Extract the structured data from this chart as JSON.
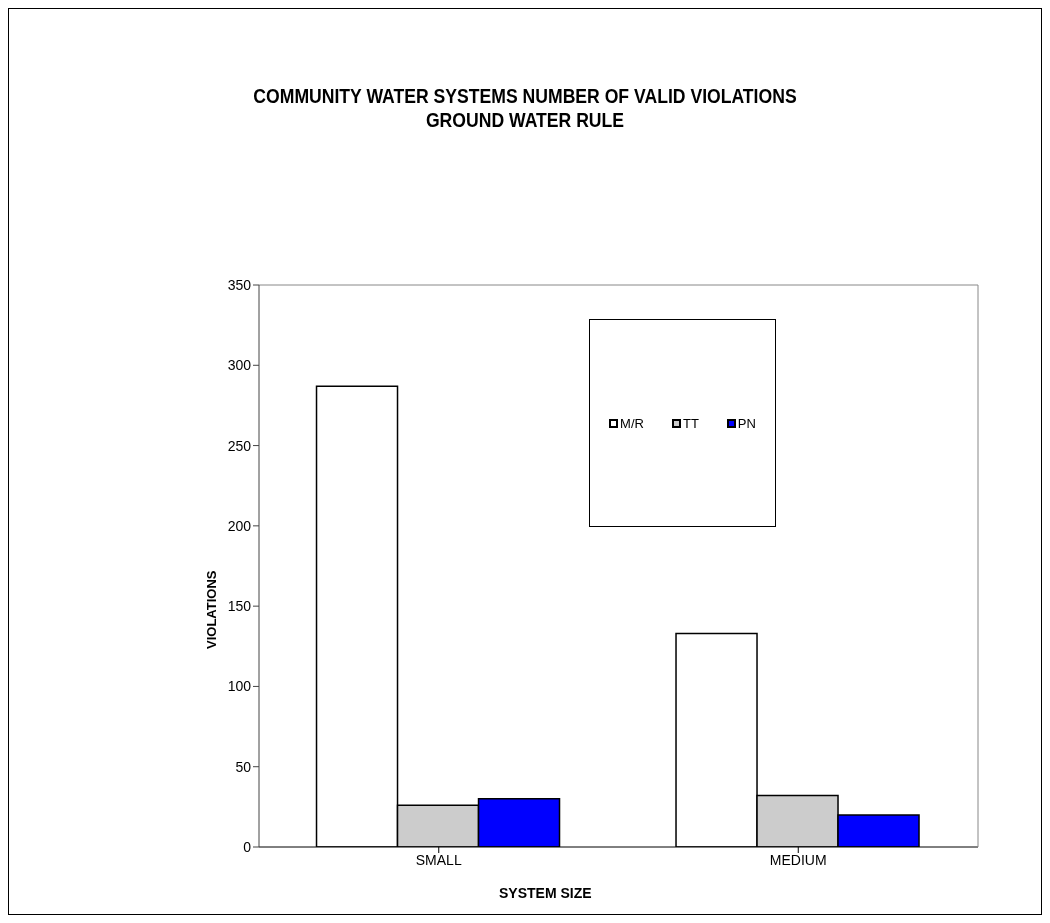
{
  "chart_data": {
    "type": "bar",
    "title": "COMMUNITY WATER SYSTEMS NUMBER OF VALID VIOLATIONS\nGROUND WATER RULE",
    "xlabel": "SYSTEM SIZE",
    "ylabel": "VIOLATIONS",
    "categories": [
      "SMALL",
      "MEDIUM"
    ],
    "series": [
      {
        "name": "M/R",
        "color": "#ffffff",
        "values": [
          287,
          133
        ]
      },
      {
        "name": "TT",
        "color": "#cccccc",
        "values": [
          26,
          32
        ]
      },
      {
        "name": "PN",
        "color": "#0000ff",
        "values": [
          30,
          20
        ]
      }
    ],
    "ylim": [
      0,
      350
    ],
    "yticks": [
      0,
      50,
      100,
      150,
      200,
      250,
      300,
      350
    ],
    "grid": false,
    "legend": "top right"
  }
}
